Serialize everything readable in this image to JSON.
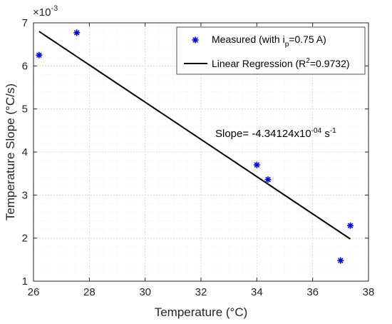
{
  "chart_data": {
    "type": "scatter",
    "xlabel": "Temperature (°C)",
    "ylabel": "Temperature Slope (°C/s)",
    "xlim": [
      26,
      38
    ],
    "ylim": [
      1,
      7
    ],
    "y_multiplier_label": {
      "base": "×10",
      "exp": "-3"
    },
    "x_ticks": [
      "26",
      "28",
      "30",
      "32",
      "34",
      "36",
      "38"
    ],
    "y_ticks": [
      "1",
      "2",
      "3",
      "4",
      "5",
      "6",
      "7"
    ],
    "grid": true,
    "minor_grid": true,
    "legend_placement": "top-right",
    "series": [
      {
        "name": "Measured (with i_p=0.75 A)",
        "legend": {
          "pre": "Measured (with i",
          "sub": "p",
          "post": "=0.75 A)"
        },
        "type": "scatter",
        "color": "#0000ff",
        "marker": "asterisk",
        "x": [
          26.2,
          27.55,
          34.0,
          34.4,
          37.0,
          37.35
        ],
        "y": [
          6.25,
          6.77,
          3.7,
          3.36,
          1.48,
          2.29
        ]
      },
      {
        "name": "Linear Regression (R^2=0.9732)",
        "legend": {
          "pre": "Linear Regression (R",
          "sup": "2",
          "post": "=0.9732)"
        },
        "type": "line",
        "color": "#000000",
        "x": [
          26.2,
          37.35
        ],
        "y": [
          6.8,
          1.98
        ]
      }
    ],
    "annotation": {
      "pre": "Slope= -4.34124x10",
      "sup1": "-04",
      "mid": " s",
      "sup2": "-1"
    }
  }
}
